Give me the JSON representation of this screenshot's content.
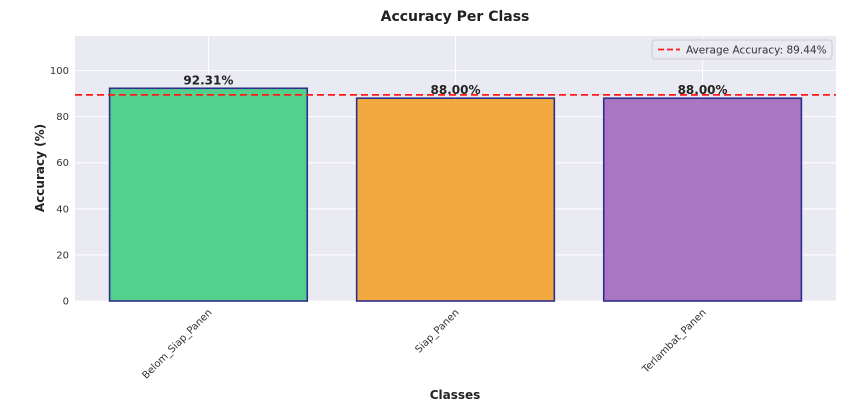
{
  "chart_data": {
    "type": "bar",
    "title": "Accuracy Per Class",
    "xlabel": "Classes",
    "ylabel": "Accuracy (%)",
    "categories": [
      "Belom_Siap_Panen",
      "Siap_Panen",
      "Terlambat_Panen"
    ],
    "values": [
      92.31,
      88.0,
      88.0
    ],
    "data_labels": [
      "92.31%",
      "88.00%",
      "88.00%"
    ],
    "colors": [
      "#52d18c",
      "#f2aa40",
      "#a977c1"
    ],
    "edge_color": "#2e2e8c",
    "ylim": [
      0,
      115
    ],
    "yticks": [
      0,
      20,
      40,
      60,
      80,
      100
    ],
    "grid": true,
    "background": "#eaeaf2",
    "reference_line": {
      "value": 89.44,
      "label": "Average Accuracy: 89.44%",
      "color": "#ff1a1a",
      "style": "dashed"
    },
    "legend_position": "top-right"
  }
}
